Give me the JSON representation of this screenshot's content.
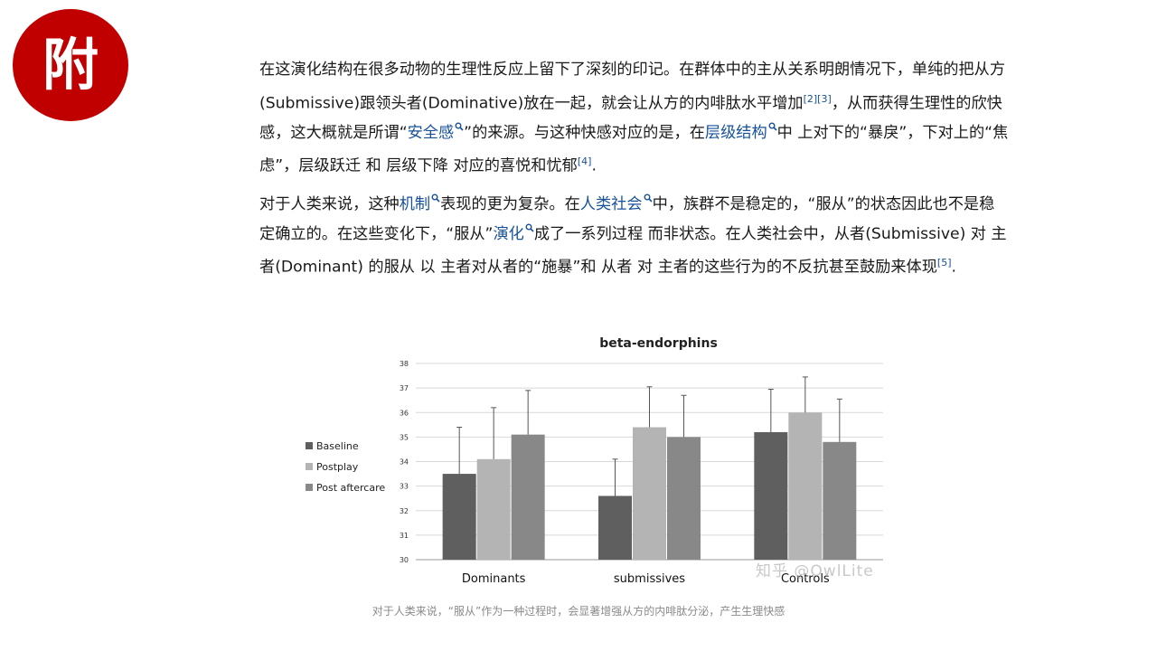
{
  "badge": {
    "char": "附"
  },
  "para1": [
    {
      "t": "在这演化结构在很多动物的生理性反应上留下了深刻的印记。在群体中的主从关系明朗情况下，单纯的把从方(Submissive)跟领头者(Dominative)放在一起，就会让从方的内啡肽水平增加"
    },
    {
      "t": "[2]",
      "sup": true
    },
    {
      "t": "[3]",
      "sup": true
    },
    {
      "t": "，从而获得生理性的欣快感，这大概就是所谓“"
    },
    {
      "t": "安全感",
      "link": true
    },
    {
      "t": "”的来源。与这种快感对应的是，在"
    },
    {
      "t": "层级结构",
      "link": true
    },
    {
      "t": "中 上对下的“暴戾”，下对上的“焦虑”，层级跃迁 和 层级下降 对应的喜悦和忧郁"
    },
    {
      "t": "[4]",
      "sup": true
    },
    {
      "t": "."
    }
  ],
  "para2": [
    {
      "t": "对于人类来说，这种"
    },
    {
      "t": "机制",
      "link": true
    },
    {
      "t": "表现的更为复杂。在"
    },
    {
      "t": "人类社会",
      "link": true
    },
    {
      "t": "中，族群不是稳定的，“服从”的状态因此也不是稳定确立的。在这些变化下，“服从”"
    },
    {
      "t": "演化",
      "link": true
    },
    {
      "t": "成了一系列过程 而非状态。在人类社会中，从者(Submissive) 对 主者(Dominant) 的服从 以 主者对从者的“施暴”和 从者 对 主者的这些行为的不反抗甚至鼓励来体现"
    },
    {
      "t": "[5]",
      "sup": true
    },
    {
      "t": "."
    }
  ],
  "chart_data": {
    "type": "bar",
    "title": "beta-endorphins",
    "categories": [
      "Dominants",
      "submissives",
      "Controls"
    ],
    "series": [
      {
        "name": "Baseline",
        "color": "#5f5f5f",
        "values": [
          33.5,
          32.6,
          35.2
        ],
        "error": [
          1.9,
          1.5,
          1.75
        ]
      },
      {
        "name": "Postplay",
        "color": "#b4b4b4",
        "values": [
          34.1,
          35.4,
          36.0
        ],
        "error": [
          2.1,
          1.65,
          1.45
        ]
      },
      {
        "name": "Post aftercare",
        "color": "#888888",
        "values": [
          35.1,
          35.0,
          34.8
        ],
        "error": [
          1.8,
          1.7,
          1.75
        ]
      }
    ],
    "ylim": [
      30,
      38
    ],
    "yticks": [
      "30",
      "31",
      "32",
      "33",
      "34",
      "35",
      "36",
      "37",
      "38"
    ],
    "legend_position": "left",
    "grid": true
  },
  "caption": "对于人类来说，“服从”作为一种过程时，会显著增强从方的内啡肽分泌，产生生理快感",
  "watermark": "知乎 @OwlLite"
}
